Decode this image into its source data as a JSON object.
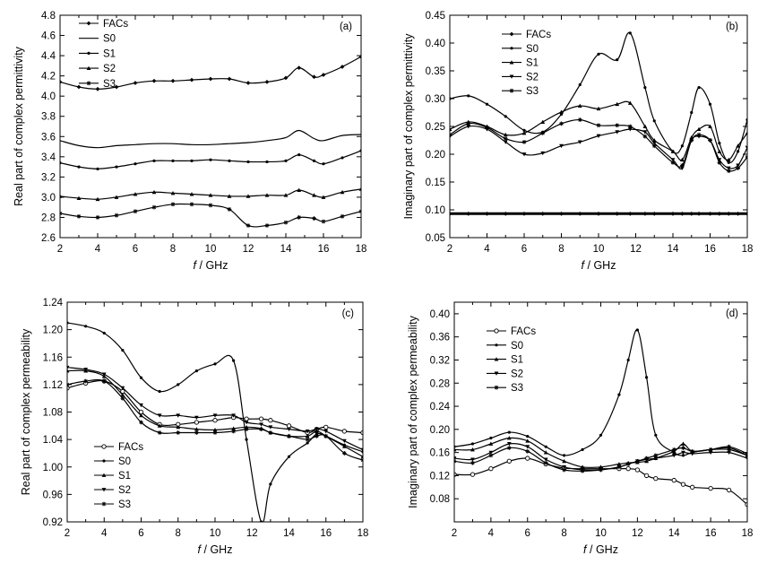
{
  "chart_data": [
    {
      "type": "line",
      "panel_label": "(a)",
      "xlabel_var": "f",
      "xlabel_unit": "/ GHz",
      "ylabel": "Real part of complex permittivity",
      "xlim": [
        2,
        18
      ],
      "ylim": [
        2.6,
        4.8
      ],
      "xticks": [
        2,
        4,
        6,
        8,
        10,
        12,
        14,
        16,
        18
      ],
      "yticks": [
        2.6,
        2.8,
        3.0,
        3.2,
        3.4,
        3.6,
        3.8,
        4.0,
        4.2,
        4.4,
        4.6,
        4.8
      ],
      "ytick_decimals": 1,
      "legend_position": "top-left",
      "x": [
        2,
        3,
        4,
        5,
        6,
        7,
        8,
        9,
        10,
        11,
        12,
        13,
        14,
        14.7,
        15.5,
        16,
        17,
        18
      ],
      "series": [
        {
          "name": "FACs",
          "marker": "diamond",
          "values": [
            4.14,
            4.09,
            4.07,
            4.09,
            4.13,
            4.15,
            4.15,
            4.16,
            4.17,
            4.17,
            4.13,
            4.14,
            4.18,
            4.28,
            4.19,
            4.21,
            4.29,
            4.39
          ]
        },
        {
          "name": "S0",
          "marker": "none",
          "values": [
            3.56,
            3.51,
            3.49,
            3.51,
            3.52,
            3.53,
            3.53,
            3.52,
            3.52,
            3.53,
            3.54,
            3.56,
            3.59,
            3.66,
            3.58,
            3.56,
            3.61,
            3.62
          ]
        },
        {
          "name": "S1",
          "marker": "dot",
          "values": [
            3.34,
            3.3,
            3.28,
            3.3,
            3.33,
            3.36,
            3.36,
            3.36,
            3.37,
            3.36,
            3.35,
            3.35,
            3.36,
            3.42,
            3.36,
            3.33,
            3.39,
            3.46
          ]
        },
        {
          "name": "S2",
          "marker": "tri",
          "values": [
            3.01,
            2.99,
            2.98,
            3.0,
            3.03,
            3.05,
            3.04,
            3.03,
            3.02,
            3.01,
            3.01,
            3.02,
            3.02,
            3.07,
            3.02,
            3.0,
            3.05,
            3.08
          ]
        },
        {
          "name": "S3",
          "marker": "star",
          "values": [
            2.84,
            2.81,
            2.8,
            2.82,
            2.86,
            2.9,
            2.93,
            2.93,
            2.92,
            2.88,
            2.72,
            2.72,
            2.75,
            2.8,
            2.79,
            2.76,
            2.81,
            2.86
          ]
        }
      ]
    },
    {
      "type": "line",
      "panel_label": "(b)",
      "xlabel_var": "f",
      "xlabel_unit": "/ GHz",
      "ylabel": "Imaginary part of complex permittivity",
      "xlim": [
        2,
        18
      ],
      "ylim": [
        0.05,
        0.45
      ],
      "xticks": [
        2,
        4,
        6,
        8,
        10,
        12,
        14,
        16,
        18
      ],
      "yticks": [
        0.05,
        0.1,
        0.15,
        0.2,
        0.25,
        0.3,
        0.35,
        0.4,
        0.45
      ],
      "ytick_decimals": 2,
      "legend_position": "top-left",
      "x": [
        2,
        3,
        4,
        5,
        6,
        7,
        8,
        9,
        10,
        11,
        11.7,
        12.5,
        13,
        14,
        14.5,
        15,
        15.4,
        16,
        16.5,
        17,
        17.5,
        18
      ],
      "series": [
        {
          "name": "FACs",
          "marker": "diamond",
          "values": [
            0.093,
            0.093,
            0.093,
            0.093,
            0.093,
            0.093,
            0.093,
            0.093,
            0.093,
            0.093,
            0.093,
            0.093,
            0.093,
            0.093,
            0.093,
            0.093,
            0.093,
            0.093,
            0.093,
            0.093,
            0.093,
            0.093
          ]
        },
        {
          "name": "S0",
          "marker": "dot",
          "values": [
            0.3,
            0.305,
            0.29,
            0.268,
            0.243,
            0.24,
            0.272,
            0.325,
            0.38,
            0.37,
            0.418,
            0.32,
            0.26,
            0.205,
            0.215,
            0.275,
            0.32,
            0.29,
            0.22,
            0.185,
            0.205,
            0.262
          ]
        },
        {
          "name": "S1",
          "marker": "tri",
          "values": [
            0.245,
            0.258,
            0.25,
            0.235,
            0.238,
            0.258,
            0.276,
            0.287,
            0.282,
            0.29,
            0.292,
            0.25,
            0.225,
            0.205,
            0.19,
            0.23,
            0.245,
            0.25,
            0.205,
            0.19,
            0.215,
            0.238
          ]
        },
        {
          "name": "S2",
          "marker": "tri-down",
          "values": [
            0.232,
            0.25,
            0.245,
            0.222,
            0.2,
            0.202,
            0.215,
            0.222,
            0.233,
            0.24,
            0.245,
            0.24,
            0.22,
            0.19,
            0.175,
            0.225,
            0.232,
            0.225,
            0.19,
            0.175,
            0.18,
            0.212
          ]
        },
        {
          "name": "S3",
          "marker": "star",
          "values": [
            0.235,
            0.255,
            0.248,
            0.228,
            0.222,
            0.238,
            0.255,
            0.262,
            0.252,
            0.252,
            0.25,
            0.232,
            0.215,
            0.185,
            0.18,
            0.225,
            0.235,
            0.225,
            0.185,
            0.17,
            0.175,
            0.195
          ]
        }
      ]
    },
    {
      "type": "line",
      "panel_label": "(c)",
      "xlabel_var": "f",
      "xlabel_unit": "/ GHz",
      "ylabel": "Real part of complex permeability",
      "xlim": [
        2,
        18
      ],
      "ylim": [
        0.92,
        1.24
      ],
      "xticks": [
        2,
        4,
        6,
        8,
        10,
        12,
        14,
        16,
        18
      ],
      "yticks": [
        0.92,
        0.96,
        1.0,
        1.04,
        1.08,
        1.12,
        1.16,
        1.2,
        1.24
      ],
      "ytick_decimals": 2,
      "legend_position": "bottom-left",
      "x": [
        2,
        3,
        4,
        5,
        6,
        7,
        8,
        9,
        10,
        11,
        11.7,
        12.5,
        13,
        14,
        15,
        15.5,
        16,
        17,
        18
      ],
      "series": [
        {
          "name": "FACs",
          "marker": "circle",
          "values": [
            1.115,
            1.122,
            1.125,
            1.11,
            1.08,
            1.062,
            1.062,
            1.065,
            1.068,
            1.072,
            1.07,
            1.07,
            1.068,
            1.06,
            1.05,
            1.055,
            1.058,
            1.052,
            1.05
          ]
        },
        {
          "name": "S0",
          "marker": "dot",
          "values": [
            1.21,
            1.205,
            1.195,
            1.17,
            1.13,
            1.11,
            1.12,
            1.14,
            1.15,
            1.155,
            1.04,
            0.92,
            0.975,
            1.015,
            1.035,
            1.048,
            1.045,
            1.032,
            1.022
          ]
        },
        {
          "name": "S1",
          "marker": "tri",
          "values": [
            1.14,
            1.14,
            1.132,
            1.105,
            1.075,
            1.06,
            1.058,
            1.055,
            1.054,
            1.056,
            1.058,
            1.056,
            1.05,
            1.045,
            1.045,
            1.052,
            1.045,
            1.03,
            1.015
          ]
        },
        {
          "name": "S2",
          "marker": "tri-down",
          "values": [
            1.145,
            1.142,
            1.135,
            1.115,
            1.09,
            1.075,
            1.075,
            1.072,
            1.075,
            1.075,
            1.065,
            1.062,
            1.058,
            1.055,
            1.052,
            1.055,
            1.052,
            1.038,
            1.025
          ]
        },
        {
          "name": "S3",
          "marker": "star",
          "values": [
            1.12,
            1.125,
            1.125,
            1.1,
            1.065,
            1.05,
            1.05,
            1.05,
            1.05,
            1.052,
            1.055,
            1.055,
            1.05,
            1.045,
            1.04,
            1.045,
            1.045,
            1.02,
            1.01
          ]
        }
      ]
    },
    {
      "type": "line",
      "panel_label": "(d)",
      "xlabel_var": "f",
      "xlabel_unit": "/ GHz",
      "ylabel": "Imaginary part of complex permeability",
      "xlim": [
        2,
        18
      ],
      "ylim": [
        0.04,
        0.42
      ],
      "xticks": [
        2,
        4,
        6,
        8,
        10,
        12,
        14,
        16,
        18
      ],
      "yticks": [
        0.08,
        0.12,
        0.16,
        0.2,
        0.24,
        0.28,
        0.32,
        0.36,
        0.4
      ],
      "ytick_decimals": 2,
      "legend_position": "top-left",
      "x": [
        2,
        3,
        4,
        5,
        6,
        7,
        8,
        9,
        10,
        11,
        11.5,
        12,
        12.5,
        13,
        14,
        14.5,
        15,
        16,
        17,
        18
      ],
      "series": [
        {
          "name": "FACs",
          "marker": "circle",
          "values": [
            0.122,
            0.122,
            0.132,
            0.145,
            0.15,
            0.14,
            0.133,
            0.132,
            0.132,
            0.132,
            0.132,
            0.13,
            0.12,
            0.115,
            0.112,
            0.105,
            0.1,
            0.098,
            0.095,
            0.07
          ]
        },
        {
          "name": "S0",
          "marker": "dot",
          "values": [
            0.17,
            0.175,
            0.185,
            0.195,
            0.188,
            0.17,
            0.155,
            0.165,
            0.19,
            0.26,
            0.32,
            0.372,
            0.29,
            0.19,
            0.16,
            0.155,
            0.16,
            0.165,
            0.165,
            0.155
          ]
        },
        {
          "name": "S1",
          "marker": "tri",
          "values": [
            0.165,
            0.165,
            0.175,
            0.185,
            0.18,
            0.16,
            0.145,
            0.135,
            0.135,
            0.14,
            0.142,
            0.143,
            0.145,
            0.15,
            0.162,
            0.175,
            0.162,
            0.165,
            0.168,
            0.155
          ]
        },
        {
          "name": "S2",
          "marker": "tri-down",
          "values": [
            0.15,
            0.148,
            0.16,
            0.175,
            0.17,
            0.148,
            0.135,
            0.13,
            0.13,
            0.135,
            0.14,
            0.145,
            0.148,
            0.15,
            0.155,
            0.16,
            0.158,
            0.16,
            0.16,
            0.15
          ]
        },
        {
          "name": "S3",
          "marker": "star",
          "values": [
            0.145,
            0.142,
            0.155,
            0.168,
            0.162,
            0.142,
            0.13,
            0.128,
            0.13,
            0.135,
            0.14,
            0.145,
            0.15,
            0.155,
            0.165,
            0.168,
            0.162,
            0.165,
            0.17,
            0.158
          ]
        }
      ]
    }
  ]
}
